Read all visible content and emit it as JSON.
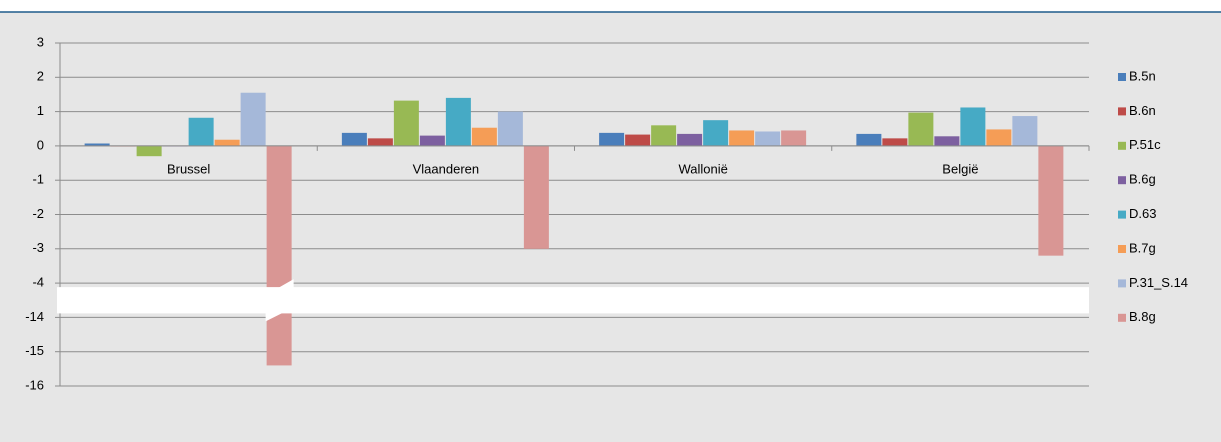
{
  "chart_data": {
    "type": "bar",
    "categories": [
      "Brussel",
      "Vlaanderen",
      "Wallonië",
      "België"
    ],
    "series": [
      {
        "name": "B.5n",
        "color": "#4a7ebb",
        "values": [
          0.07,
          0.38,
          0.38,
          0.35
        ]
      },
      {
        "name": "B.6n",
        "color": "#be4b48",
        "values": [
          0,
          0.22,
          0.33,
          0.22
        ]
      },
      {
        "name": "P.51c",
        "color": "#98b954",
        "values": [
          -0.3,
          1.32,
          0.6,
          0.97
        ]
      },
      {
        "name": "B.6g",
        "color": "#7d60a0",
        "values": [
          0,
          0.3,
          0.35,
          0.28
        ]
      },
      {
        "name": "D.63",
        "color": "#46aac5",
        "values": [
          0.82,
          1.4,
          0.75,
          1.12
        ]
      },
      {
        "name": "B.7g",
        "color": "#f59d56",
        "values": [
          0.18,
          0.53,
          0.45,
          0.48
        ]
      },
      {
        "name": "P.31_S.14",
        "color": "#a5b8d9",
        "values": [
          1.55,
          1.0,
          0.42,
          0.87
        ]
      },
      {
        "name": "B.8g",
        "color": "#d99694",
        "values": [
          -15.4,
          -3.0,
          0.45,
          -3.2
        ]
      }
    ],
    "ylim": [
      -16,
      3
    ],
    "y_break": [
      -14,
      -4
    ],
    "yticks": [
      3,
      2,
      1,
      0,
      -1,
      -2,
      -3,
      -4,
      -14,
      -15,
      -16
    ],
    "grid": true,
    "legend": "right"
  }
}
